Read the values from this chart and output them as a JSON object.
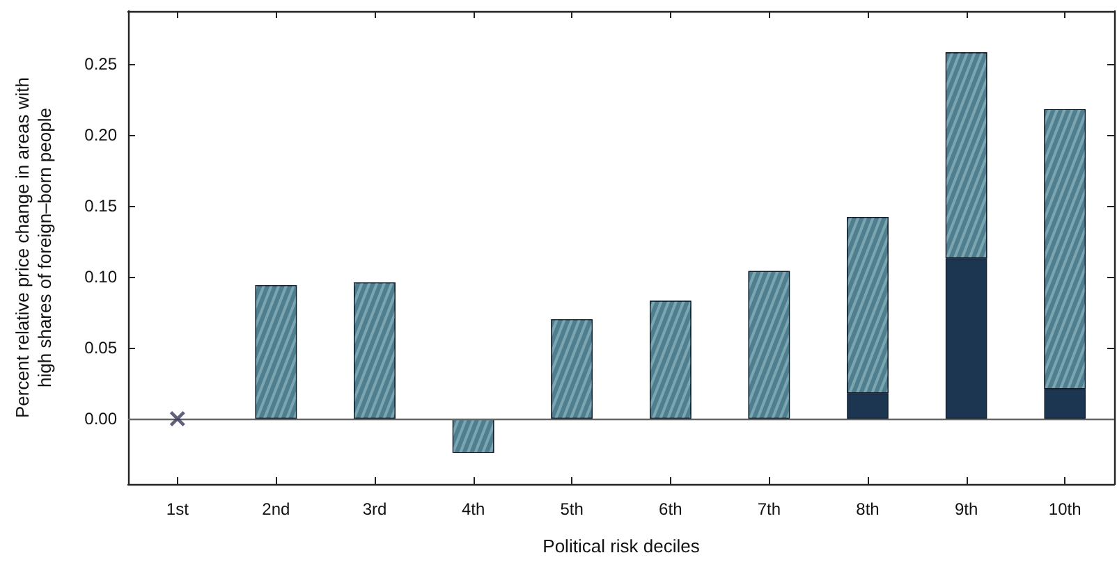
{
  "chart_data": {
    "type": "bar",
    "xlabel": "Political risk deciles",
    "ylabel": "Percent relative price change in areas with\nhigh shares of foreign–born people",
    "categories": [
      "1st",
      "2nd",
      "3rd",
      "4th",
      "5th",
      "6th",
      "7th",
      "8th",
      "9th",
      "10th"
    ],
    "stacked": true,
    "series": [
      {
        "color": "#1c3550",
        "values": [
          null,
          null,
          null,
          null,
          null,
          null,
          null,
          0.018,
          0.113,
          0.021
        ]
      },
      {
        "color": "#4f7f8f",
        "values": [
          null,
          0.094,
          0.096,
          -0.024,
          0.07,
          0.083,
          0.104,
          0.124,
          0.145,
          0.197
        ]
      },
      {
        "type": "scatter",
        "color": "#3a3a5a",
        "marker": "cross",
        "x": [
          "1st"
        ],
        "values": [
          0
        ]
      }
    ],
    "ylim": [
      -0.046,
      0.287
    ],
    "yticks": [
      {
        "value": 0,
        "label": "0.00"
      },
      {
        "value": 0.05,
        "label": "0.05"
      },
      {
        "value": 0.1,
        "label": "0.10"
      },
      {
        "value": 0.15,
        "label": "0.15"
      },
      {
        "value": 0.2,
        "label": "0.20"
      },
      {
        "value": 0.25,
        "label": "0.25"
      }
    ],
    "ref_lines": [
      {
        "axis": "y",
        "value": 0,
        "color": "#666666"
      }
    ]
  }
}
